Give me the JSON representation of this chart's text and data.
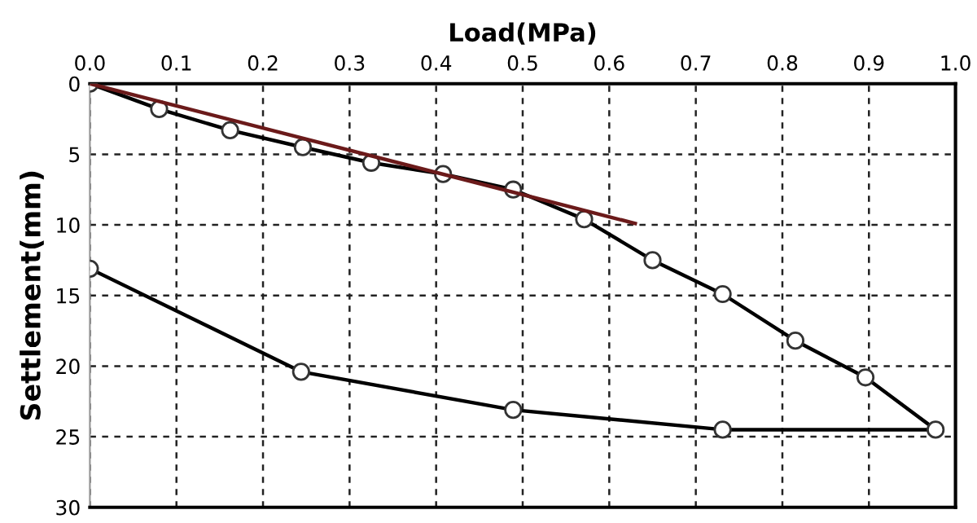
{
  "chart_data": {
    "type": "line",
    "xlabel": "Load(MPa)",
    "ylabel": "Settlement(mm)",
    "xlim": [
      0,
      1.0
    ],
    "xticks": [
      {
        "value": 0,
        "label": "0.0"
      },
      0.1,
      0.2,
      0.3,
      0.4,
      0.5,
      0.6,
      0.7,
      0.8,
      0.9,
      {
        "value": 1.0,
        "label": "1.0"
      }
    ],
    "ylim": [
      30,
      0
    ],
    "yticks": [
      0,
      5,
      10,
      15,
      20,
      25,
      30
    ],
    "grid": true,
    "line_style": "solid",
    "series": [
      {
        "color": "#000000",
        "marker": "circle",
        "x": [
          0,
          0.08,
          0.162,
          0.246,
          0.325,
          0.408,
          0.489,
          0.571,
          0.65,
          0.731,
          0.815,
          0.896,
          0.977,
          0.731,
          0.489,
          0.244,
          0
        ],
        "values": [
          0,
          1.8,
          3.3,
          4.5,
          5.6,
          6.4,
          7.5,
          9.6,
          12.5,
          14.9,
          18.2,
          20.8,
          24.5,
          24.5,
          23.1,
          20.4,
          13.1
        ]
      },
      {
        "color": "#6b1a1a",
        "marker": "none",
        "x": [
          0,
          0.63
        ],
        "values": [
          0,
          9.9
        ]
      }
    ]
  }
}
